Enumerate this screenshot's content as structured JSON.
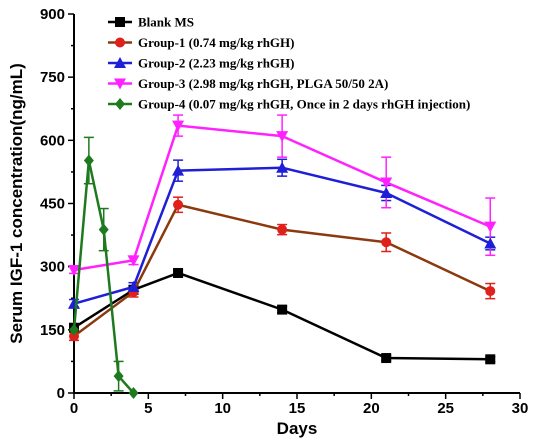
{
  "chart_data": {
    "type": "line",
    "xlabel": "Days",
    "ylabel": "Serum IGF-1 concentration(ng/mL)",
    "xlim": [
      0,
      30
    ],
    "ylim": [
      0,
      900
    ],
    "x_ticks": [
      "0",
      "5",
      "10",
      "15",
      "20",
      "25",
      "30"
    ],
    "y_ticks": [
      "0",
      "150",
      "300",
      "450",
      "600",
      "750",
      "900"
    ],
    "legend_position": "top-left",
    "series": [
      {
        "name": "Blank MS",
        "color": "#000000",
        "marker": "square",
        "points": [
          {
            "x": 0,
            "y": 155,
            "err": 8
          },
          {
            "x": 4,
            "y": 245,
            "err": 10
          },
          {
            "x": 7,
            "y": 285,
            "err": 8
          },
          {
            "x": 14,
            "y": 198,
            "err": 8
          },
          {
            "x": 21,
            "y": 83,
            "err": 6
          },
          {
            "x": 28,
            "y": 80,
            "err": 6
          }
        ]
      },
      {
        "name": "Group-1 (0.74 mg/kg rhGH)",
        "color": "#e0201a",
        "line_color": "#8b3a0e",
        "marker": "circle",
        "points": [
          {
            "x": 0,
            "y": 135,
            "err": 10
          },
          {
            "x": 4,
            "y": 240,
            "err": 12
          },
          {
            "x": 7,
            "y": 447,
            "err": 18
          },
          {
            "x": 14,
            "y": 388,
            "err": 12
          },
          {
            "x": 21,
            "y": 358,
            "err": 22
          },
          {
            "x": 28,
            "y": 242,
            "err": 18
          }
        ]
      },
      {
        "name": "Group-2 (2.23 mg/kg rhGH)",
        "color": "#1f1fd6",
        "marker": "triangle-up",
        "points": [
          {
            "x": 0,
            "y": 212,
            "err": 10
          },
          {
            "x": 4,
            "y": 252,
            "err": 10
          },
          {
            "x": 7,
            "y": 528,
            "err": 25
          },
          {
            "x": 14,
            "y": 535,
            "err": 20
          },
          {
            "x": 21,
            "y": 475,
            "err": 18
          },
          {
            "x": 28,
            "y": 355,
            "err": 15
          }
        ]
      },
      {
        "name": "Group-3 (2.98 mg/kg rhGH, PLGA 50/50 2A)",
        "color": "#ff22ff",
        "marker": "triangle-down",
        "points": [
          {
            "x": 0,
            "y": 292,
            "err": 8
          },
          {
            "x": 4,
            "y": 315,
            "err": 10
          },
          {
            "x": 7,
            "y": 635,
            "err": 25
          },
          {
            "x": 14,
            "y": 610,
            "err": 50
          },
          {
            "x": 21,
            "y": 500,
            "err": 60
          },
          {
            "x": 28,
            "y": 395,
            "err": 68
          }
        ]
      },
      {
        "name": "Group-4 (0.07 mg/kg rhGH, Once in 2 days rhGH injection)",
        "color": "#1e7a1e",
        "marker": "diamond",
        "points": [
          {
            "x": 0,
            "y": 150,
            "err": 0
          },
          {
            "x": 1,
            "y": 552,
            "err": 55
          },
          {
            "x": 2,
            "y": 388,
            "err": 50
          },
          {
            "x": 3,
            "y": 40,
            "err": 35
          },
          {
            "x": 4,
            "y": 0,
            "err": 0
          }
        ]
      }
    ]
  }
}
